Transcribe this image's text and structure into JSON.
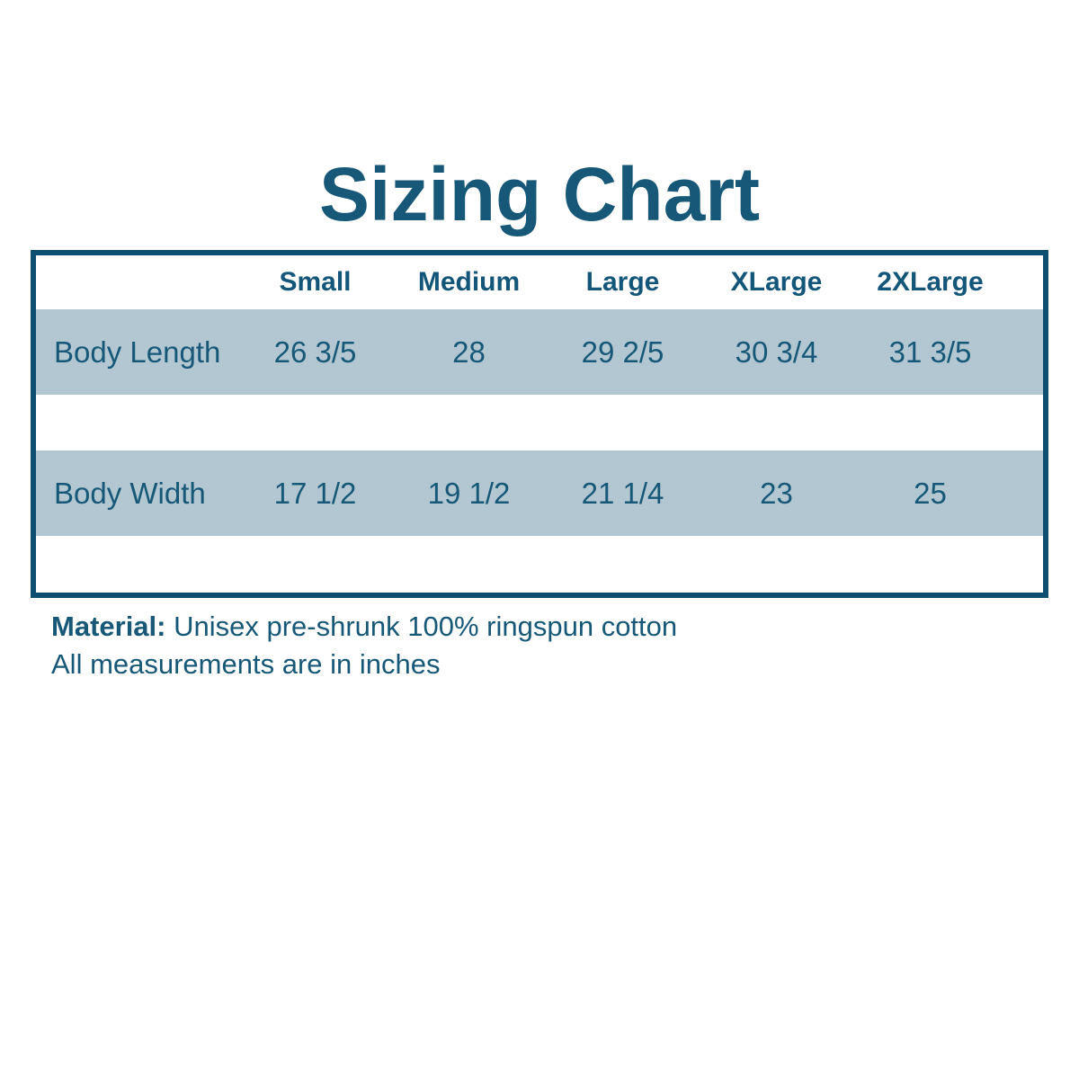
{
  "title": "Sizing Chart",
  "table": {
    "columns": [
      "Small",
      "Medium",
      "Large",
      "XLarge",
      "2XLarge"
    ],
    "rows": [
      {
        "label": "Body Length",
        "values": [
          "26 3/5",
          "28",
          "29 2/5",
          "30 3/4",
          "31 3/5"
        ]
      },
      {
        "label": "Body Width",
        "values": [
          "17 1/2",
          "19 1/2",
          "21 1/4",
          "23",
          "25"
        ]
      }
    ]
  },
  "notes": {
    "material_label": "Material:",
    "material_value": "Unisex pre-shrunk 100% ringspun cotton",
    "measurements_note": "All measurements are in inches"
  },
  "colors": {
    "text": "#175878",
    "table_border": "#0e4e71",
    "row_band": "#b2c7d1",
    "background": "#ffffff"
  },
  "chart_data": {
    "type": "table",
    "title": "Sizing Chart",
    "columns": [
      "Small",
      "Medium",
      "Large",
      "XLarge",
      "2XLarge"
    ],
    "rows": [
      {
        "label": "Body Length",
        "values": [
          "26 3/5",
          "28",
          "29 2/5",
          "30 3/4",
          "31 3/5"
        ]
      },
      {
        "label": "Body Width",
        "values": [
          "17 1/2",
          "19 1/2",
          "21 1/4",
          "23",
          "25"
        ]
      }
    ],
    "units": "inches",
    "notes": "Material: Unisex pre-shrunk 100% ringspun cotton. All measurements are in inches."
  }
}
